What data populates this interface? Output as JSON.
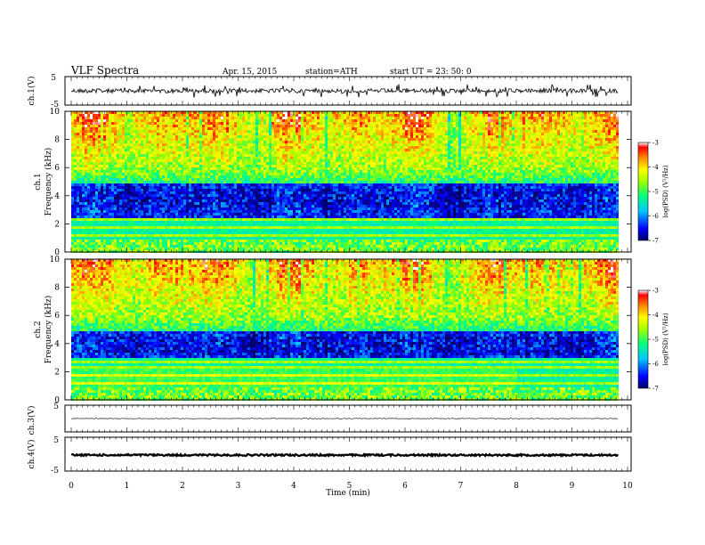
{
  "header": {
    "title": "VLF  Spectra",
    "date": "Apr. 15, 2015",
    "station": "station=ATH",
    "start": "start  UT  =    23: 50: 0"
  },
  "chart_data": [
    {
      "type": "line",
      "panel": "ch1-waveform",
      "ylabel": "ch.1(V)",
      "ylim": [
        -5,
        5
      ],
      "yticks": [
        "5",
        "-5"
      ],
      "description_level": 0,
      "noise_amplitude": 1.5
    },
    {
      "type": "heatmap",
      "panel": "ch1-spectrogram",
      "ylabel_top": "ch.1",
      "ylabel": "Frequency  (kHz)",
      "ylim": [
        0,
        10
      ],
      "yticks": [
        "0",
        "2",
        "4",
        "6",
        "8",
        "10"
      ],
      "colorbar": {
        "label": "log(PSD) (V²/Hz)",
        "range": [
          -7,
          -3
        ],
        "ticks": [
          "-3",
          "-4",
          "-5",
          "-6",
          "-7"
        ]
      },
      "bands_kHz": {
        "high_activity": [
          6,
          10
        ],
        "quiet_band": [
          2.5,
          5
        ],
        "low_lines": [
          0,
          2.5
        ]
      }
    },
    {
      "type": "heatmap",
      "panel": "ch2-spectrogram",
      "ylabel_top": "ch.2",
      "ylabel": "Frequency  (kHz)",
      "ylim": [
        0,
        10
      ],
      "yticks": [
        "0",
        "2",
        "4",
        "6",
        "8",
        "10"
      ],
      "colorbar": {
        "label": "log(PSD) (V²/Hz)",
        "range": [
          -7,
          -3
        ],
        "ticks": [
          "-3",
          "-4",
          "-5",
          "-6",
          "-7"
        ]
      },
      "bands_kHz": {
        "high_activity": [
          6,
          10
        ],
        "quiet_band": [
          3,
          5
        ],
        "low_lines": [
          0,
          3
        ]
      }
    },
    {
      "type": "line",
      "panel": "ch3-waveform",
      "ylabel": "ch.3(V)",
      "ylim": [
        -5,
        5
      ],
      "yticks": [
        "5"
      ],
      "level": 0,
      "noise_amplitude": 0.1
    },
    {
      "type": "line",
      "panel": "ch4-waveform",
      "ylabel": "ch.4(V)",
      "ylim": [
        -5,
        5
      ],
      "yticks": [
        "5",
        "-5"
      ],
      "level": 0,
      "noise_amplitude": 0.4
    }
  ],
  "xaxis": {
    "label": "Time  (min)",
    "range": [
      0,
      10
    ],
    "ticks": [
      "0",
      "1",
      "2",
      "3",
      "4",
      "5",
      "6",
      "7",
      "8",
      "9",
      "10"
    ],
    "data_end_min": 9.83
  }
}
